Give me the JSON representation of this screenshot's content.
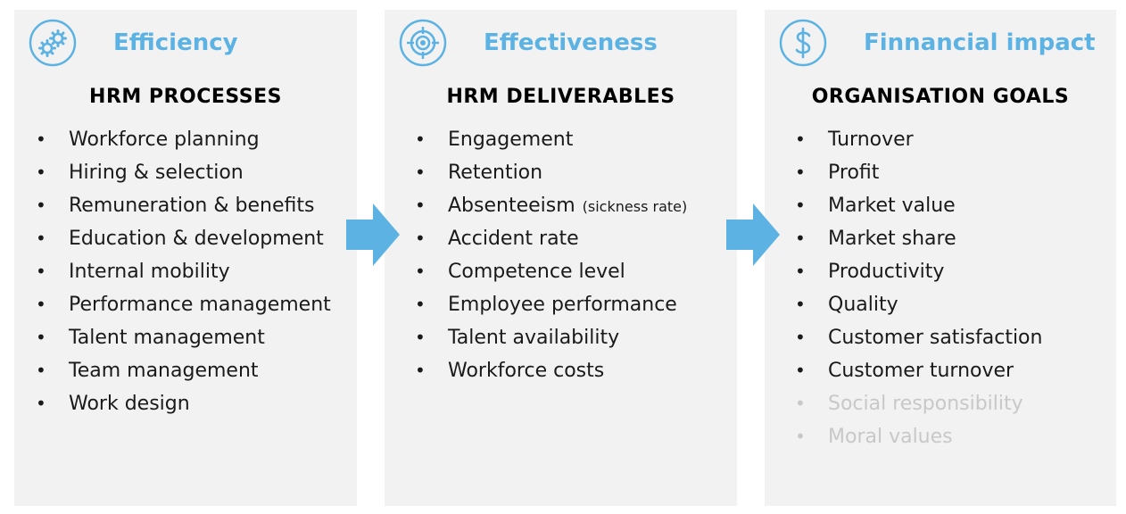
{
  "colors": {
    "accent": "#5cb3e3",
    "panel": "#f2f2f2",
    "text": "#1a1a1a",
    "faded": "#c8c8c8"
  },
  "bullet": "•",
  "columns": [
    {
      "icon": "gears-icon",
      "title": "Efficiency",
      "heading": "HRM PROCESSES",
      "items": [
        {
          "text": "Workforce planning"
        },
        {
          "text": "Hiring & selection"
        },
        {
          "text": "Remuneration & benefits"
        },
        {
          "text": "Education & development"
        },
        {
          "text": "Internal mobility"
        },
        {
          "text": "Performance management"
        },
        {
          "text": "Talent management"
        },
        {
          "text": "Team management"
        },
        {
          "text": "Work design"
        }
      ]
    },
    {
      "icon": "target-icon",
      "title": "Effectiveness",
      "heading": "HRM DELIVERABLES",
      "items": [
        {
          "text": "Engagement"
        },
        {
          "text": "Retention"
        },
        {
          "text": "Absenteeism",
          "note": "(sickness rate)"
        },
        {
          "text": "Accident rate"
        },
        {
          "text": "Competence level"
        },
        {
          "text": "Employee performance"
        },
        {
          "text": "Talent availability"
        },
        {
          "text": "Workforce costs"
        }
      ]
    },
    {
      "icon": "dollar-icon",
      "title": "Finnancial impact",
      "heading": "ORGANISATION GOALS",
      "items": [
        {
          "text": "Turnover"
        },
        {
          "text": "Profit"
        },
        {
          "text": "Market value"
        },
        {
          "text": "Market share"
        },
        {
          "text": "Productivity"
        },
        {
          "text": "Quality"
        },
        {
          "text": "Customer satisfaction"
        },
        {
          "text": "Customer turnover"
        },
        {
          "text": "Social responsibility",
          "faded": true
        },
        {
          "text": "Moral values",
          "faded": true
        }
      ]
    }
  ]
}
